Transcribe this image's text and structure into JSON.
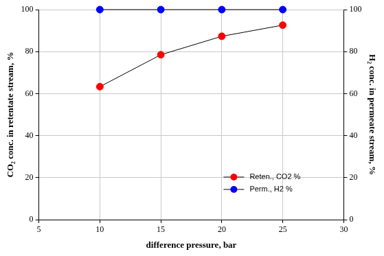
{
  "chart_data": {
    "type": "scatter",
    "x_label": "difference pressure, bar",
    "y_label": "CO₂ conc. in retentate stream, %",
    "y2_label": "H₂ conc. in permeate stream, %",
    "x": [
      10,
      15,
      20,
      25
    ],
    "series": [
      {
        "name": "Reten., CO2 %",
        "color": "#ff0000",
        "values": [
          63.3,
          78.5,
          87.3,
          92.6
        ],
        "axis": "y",
        "marker": "circle",
        "line_style": "solid"
      },
      {
        "name": "Perm., H2 %",
        "color": "#0000ff",
        "values": [
          100,
          100,
          100,
          100
        ],
        "axis": "y2",
        "marker": "circle",
        "line_style": "solid"
      }
    ],
    "xlim": [
      5,
      30
    ],
    "xticks": [
      5,
      10,
      15,
      20,
      25,
      30
    ],
    "ylim": [
      0,
      100
    ],
    "yticks": [
      0,
      20,
      40,
      60,
      80,
      100
    ],
    "y2lim": [
      0,
      100
    ],
    "y2ticks": [
      0,
      20,
      40,
      60,
      80,
      100
    ],
    "grid": true,
    "legend": "lower right"
  }
}
